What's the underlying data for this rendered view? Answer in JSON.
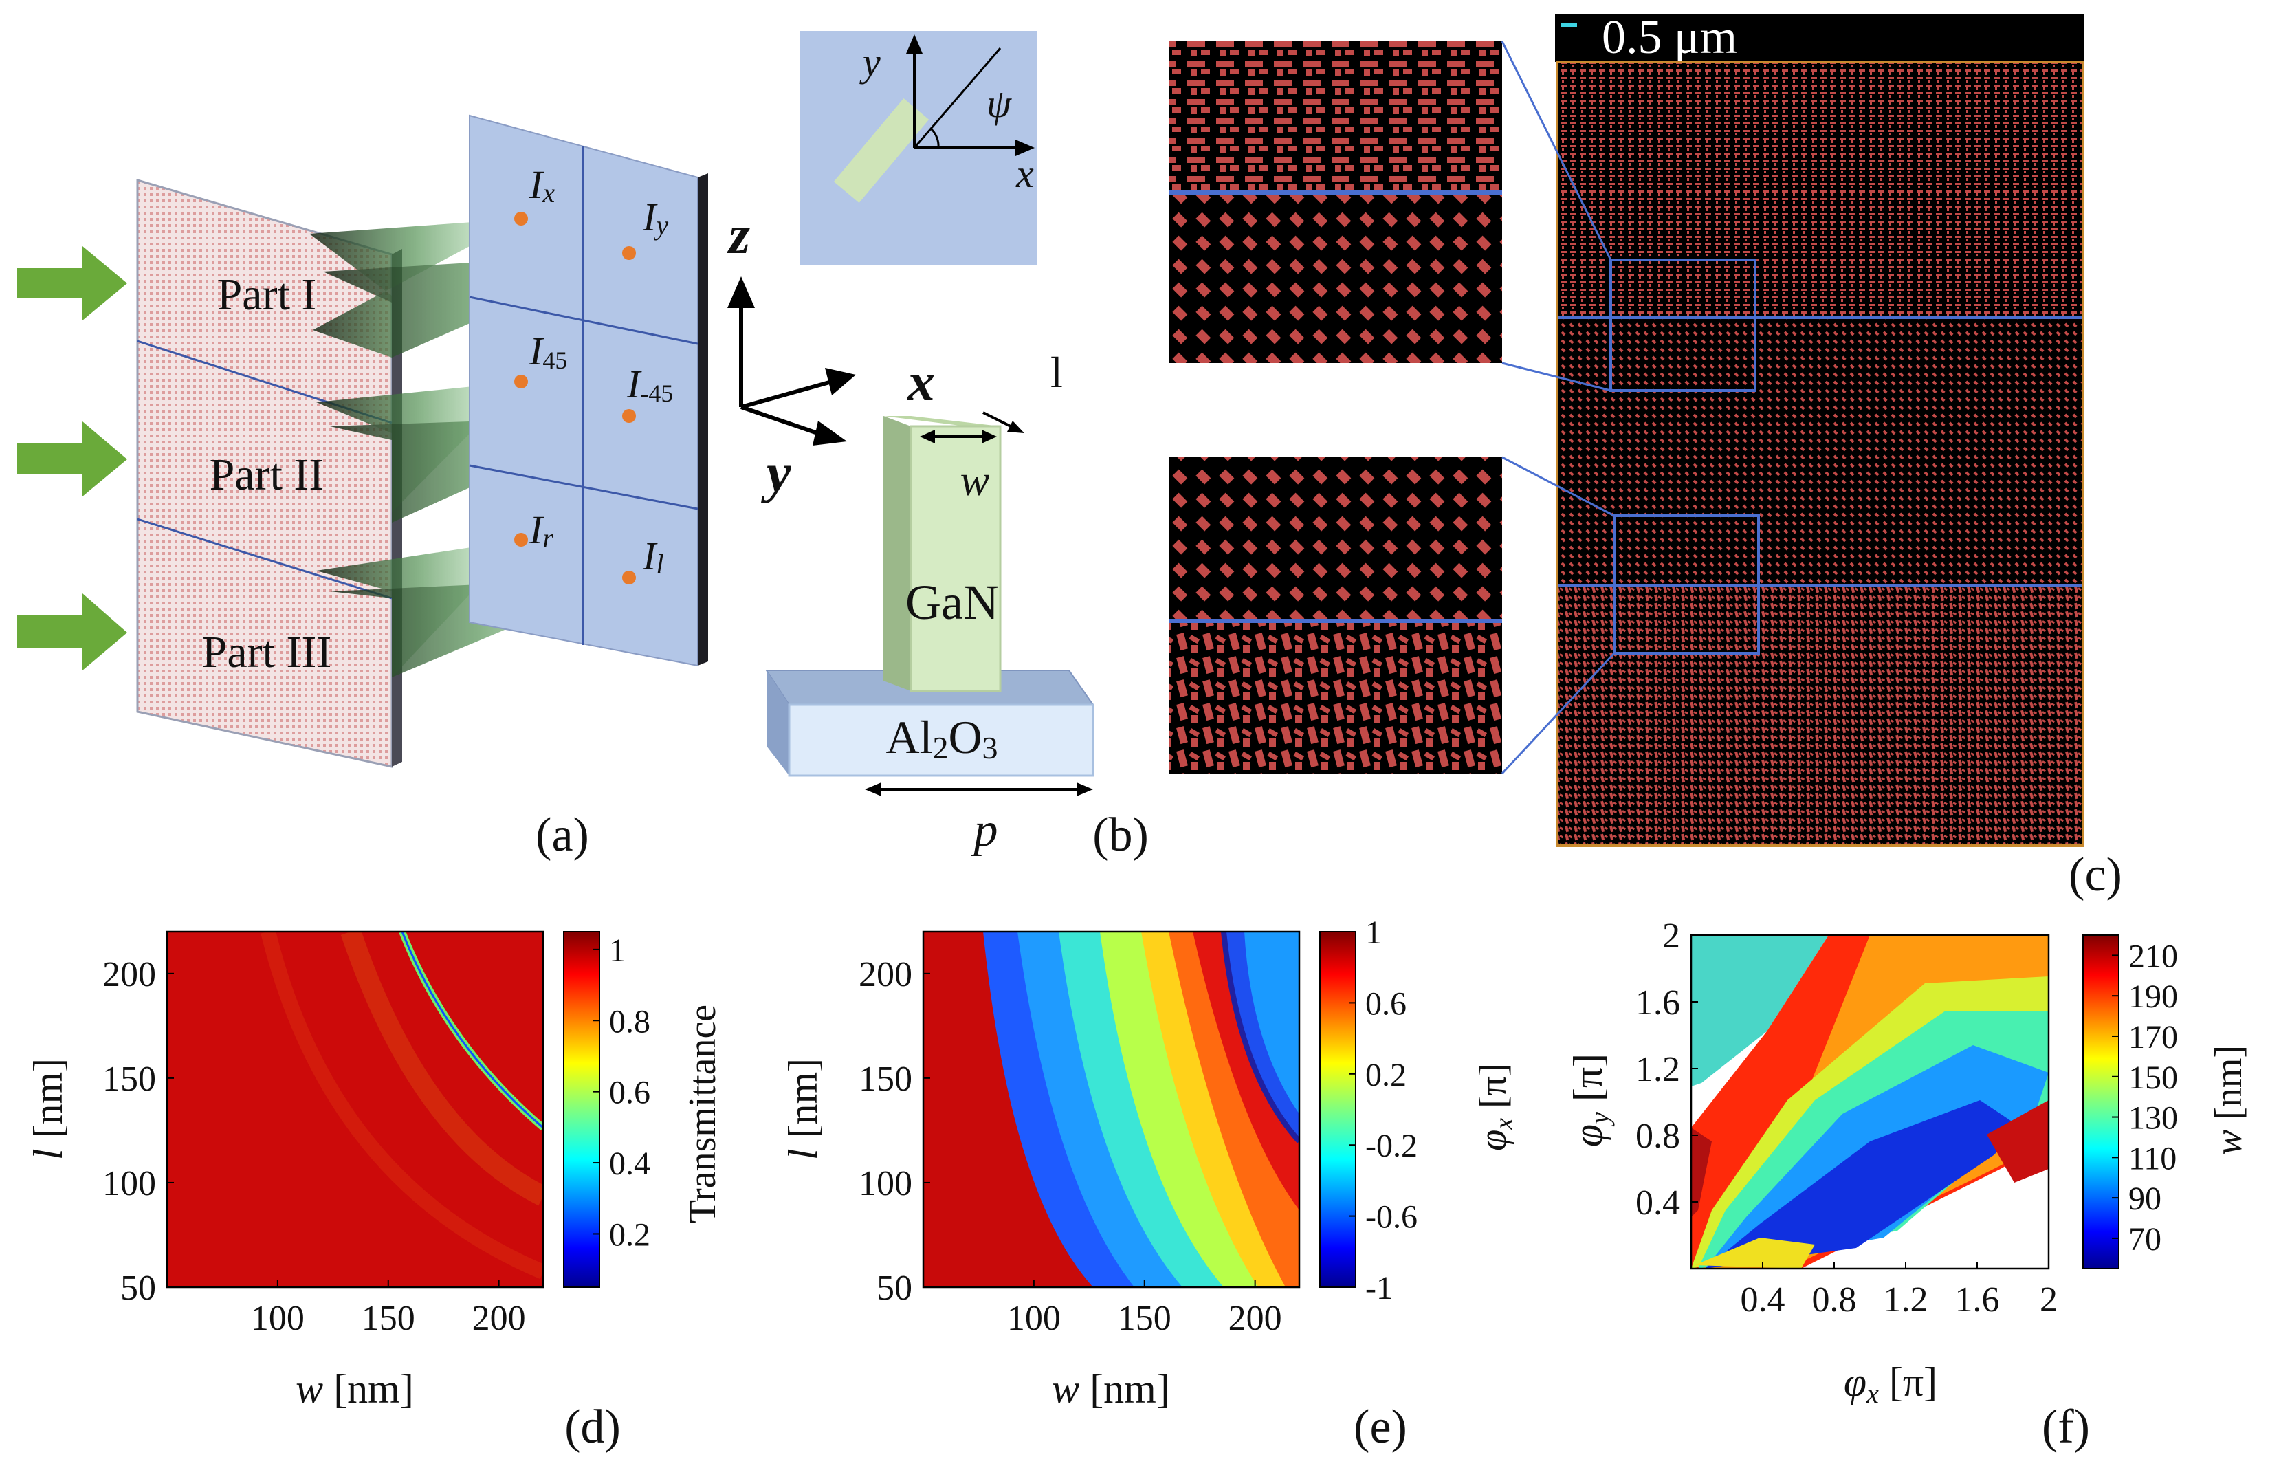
{
  "panels": {
    "a": {
      "caption": "(a)",
      "parts": [
        "Part I",
        "Part II",
        "Part III"
      ],
      "intensity": {
        "x": {
          "base": "I",
          "sub": "x"
        },
        "y": {
          "base": "I",
          "sub": "y"
        },
        "p45": {
          "base": "I",
          "sub": "45"
        },
        "m45": {
          "base": "I",
          "sub": "-45"
        },
        "r": {
          "base": "I",
          "sub": "r"
        },
        "l": {
          "base": "I",
          "sub": "l"
        }
      }
    },
    "b": {
      "caption": "(b)",
      "inset_y": "y",
      "inset_x": "x",
      "inset_angle": "ψ",
      "axis_z": "z",
      "axis_x": "x",
      "axis_y": "y",
      "label_l": "l",
      "label_w": "w",
      "label_p": "p",
      "pillar": "GaN",
      "substrate": "Al2O3"
    },
    "c": {
      "caption": "(c)",
      "scale_bar": "0.5 μm"
    }
  },
  "colors": {
    "arrow": "#6aaa3a",
    "panel_blue": "#b3c6e7",
    "metasurface_pink": "#f4dede",
    "pillar_green": "#c9e4b4",
    "unit_red": "#c24a48",
    "frame_orange": "#c98a2e",
    "divider_blue": "#4a6fd0"
  },
  "chart_data": [
    {
      "id": "d",
      "type": "heatmap",
      "caption": "(d)",
      "xlabel": {
        "var": "w",
        "unit": "[nm]"
      },
      "ylabel": {
        "var": "l",
        "unit": "[nm]"
      },
      "xlim": [
        50,
        220
      ],
      "ylim": [
        50,
        220
      ],
      "xticks": [
        "100",
        "150",
        "200"
      ],
      "yticks": [
        "50",
        "100",
        "150",
        "200"
      ],
      "colorbar": {
        "label": "Transmittance",
        "range": [
          0.05,
          1.05
        ],
        "ticks": [
          "0.2",
          "0.4",
          "0.6",
          "0.8",
          "1"
        ]
      },
      "description_values": {
        "background": 0.98,
        "resonance_dip_min": 0.1
      }
    },
    {
      "id": "e",
      "type": "heatmap",
      "caption": "(e)",
      "xlabel": {
        "var": "w",
        "unit": "[nm]"
      },
      "ylabel": {
        "var": "l",
        "unit": "[nm]"
      },
      "xlim": [
        50,
        220
      ],
      "ylim": [
        50,
        220
      ],
      "xticks": [
        "100",
        "150",
        "200"
      ],
      "yticks": [
        "50",
        "100",
        "150",
        "200"
      ],
      "colorbar": {
        "label_var": "φ",
        "label_sub": "x",
        "label_unit": "[π]",
        "range": [
          -1,
          1
        ],
        "ticks": [
          "-1",
          "-0.6",
          "-0.2",
          "0.2",
          "0.6",
          "1"
        ]
      }
    },
    {
      "id": "f",
      "type": "heatmap",
      "caption": "(f)",
      "xlabel": {
        "var": "φ",
        "sub": "x",
        "unit": "[π]"
      },
      "ylabel": {
        "var": "φ",
        "sub": "y",
        "unit": "[π]"
      },
      "xlim": [
        0,
        2
      ],
      "ylim": [
        0,
        2
      ],
      "xticks": [
        "0.4",
        "0.8",
        "1.2",
        "1.6",
        "2"
      ],
      "yticks": [
        "0.4",
        "0.8",
        "1.2",
        "1.6",
        "2"
      ],
      "colorbar": {
        "label_var": "w",
        "label_unit": "[nm]",
        "range": [
          55,
          220
        ],
        "ticks": [
          "70",
          "90",
          "110",
          "130",
          "150",
          "170",
          "190",
          "210"
        ]
      }
    }
  ]
}
